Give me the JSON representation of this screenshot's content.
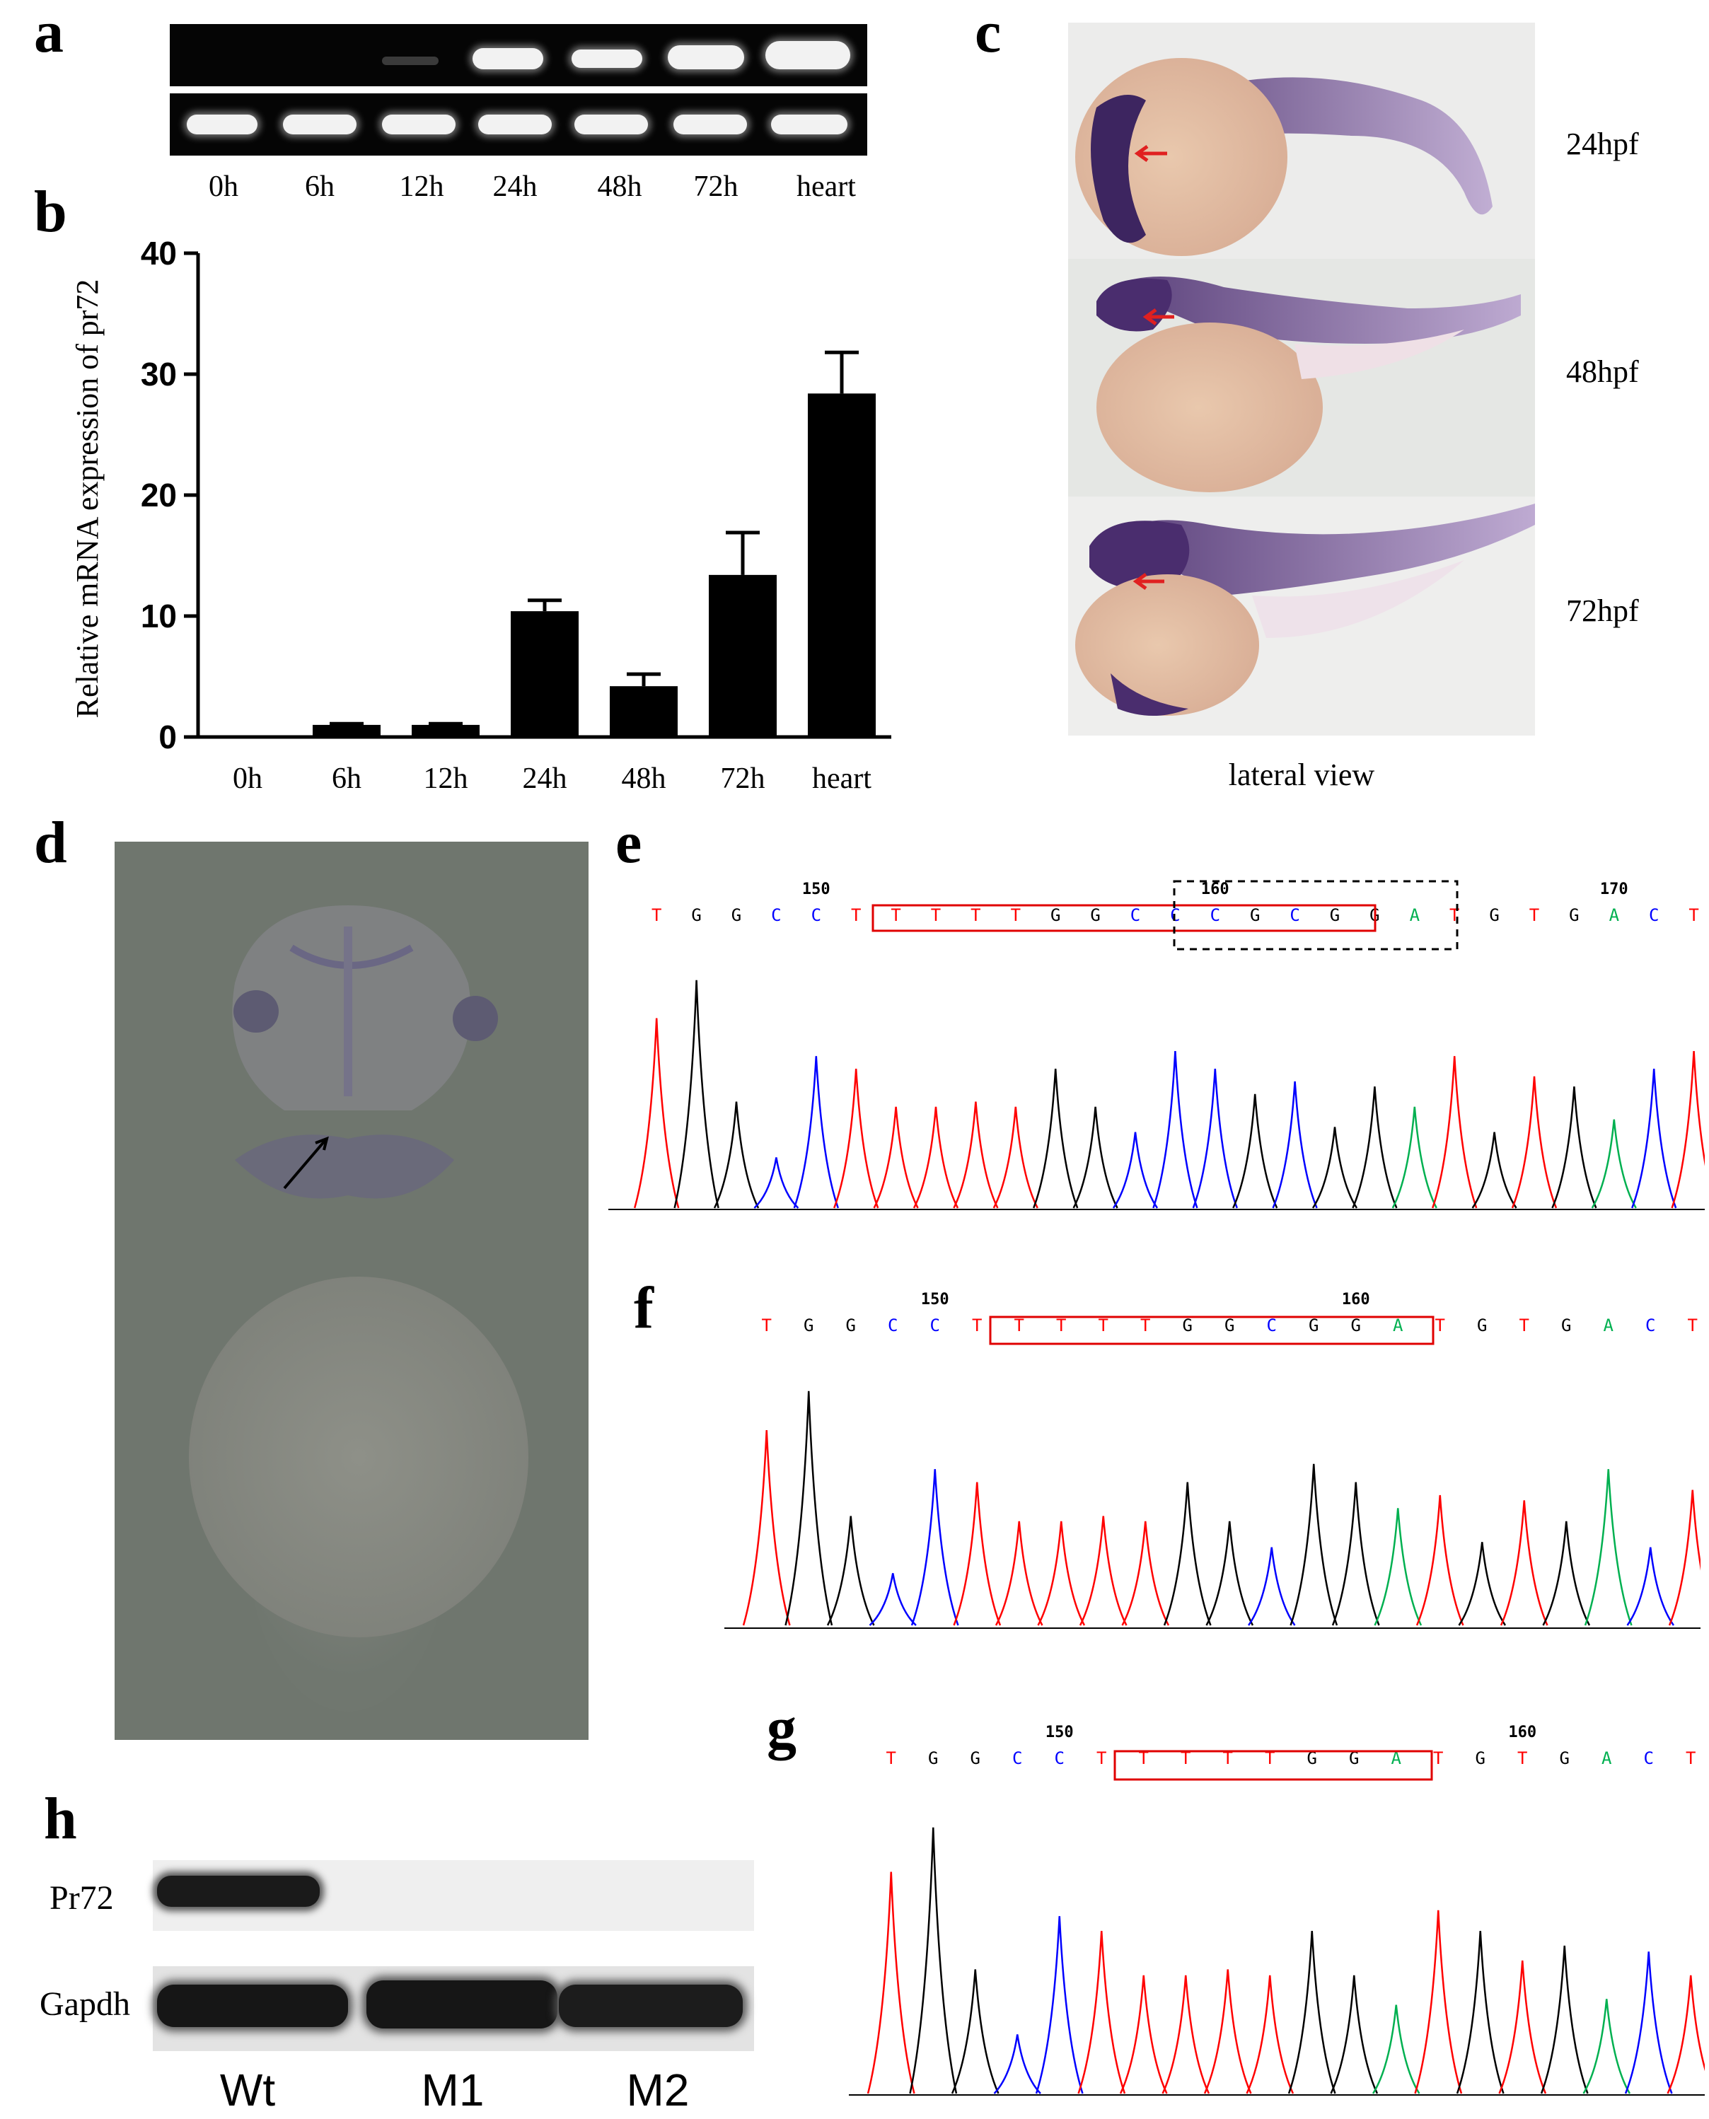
{
  "panels": {
    "a": "a",
    "b": "b",
    "c": "c",
    "d": "d",
    "e": "e",
    "f": "f",
    "g": "g",
    "h": "h"
  },
  "panel_a": {
    "lanes": [
      "0h",
      "6h",
      "12h",
      "24h",
      "48h",
      "72h",
      "heart"
    ]
  },
  "chart_data": {
    "type": "bar",
    "categories": [
      "0h",
      "6h",
      "12h",
      "24h",
      "48h",
      "72h",
      "heart"
    ],
    "values": [
      0,
      1.0,
      1.0,
      10.4,
      4.2,
      13.4,
      28.4
    ],
    "errors": [
      0,
      0.1,
      0.1,
      0.9,
      1.0,
      3.5,
      3.4
    ],
    "ylabel": "Relative mRNA expression of pr72",
    "ylim": [
      0,
      40
    ],
    "yticks": [
      "0",
      "10",
      "20",
      "30",
      "40"
    ]
  },
  "panel_c": {
    "stages": [
      "24hpf",
      "48hpf",
      "72hpf"
    ],
    "caption": "lateral view"
  },
  "colors": {
    "A": "#00b050",
    "C": "#0000ff",
    "G": "#000000",
    "T": "#ff0000",
    "box": "#e00000"
  },
  "seq_e": {
    "bases": "TGGCCTTTTTGGCCCGCGGATGTGACT",
    "nums": [
      "150",
      "160",
      "170"
    ]
  },
  "seq_f": {
    "bases": "TGGCCTTTTTGGCGGATGTGACT",
    "nums": [
      "150",
      "160"
    ]
  },
  "seq_g": {
    "bases": "TGGCCTTTTTGGATGTGACT",
    "nums": [
      "150",
      "160"
    ]
  },
  "panel_h": {
    "rows": [
      "Pr72",
      "Gapdh"
    ],
    "lanes": [
      "Wt",
      "M1",
      "M2"
    ]
  }
}
